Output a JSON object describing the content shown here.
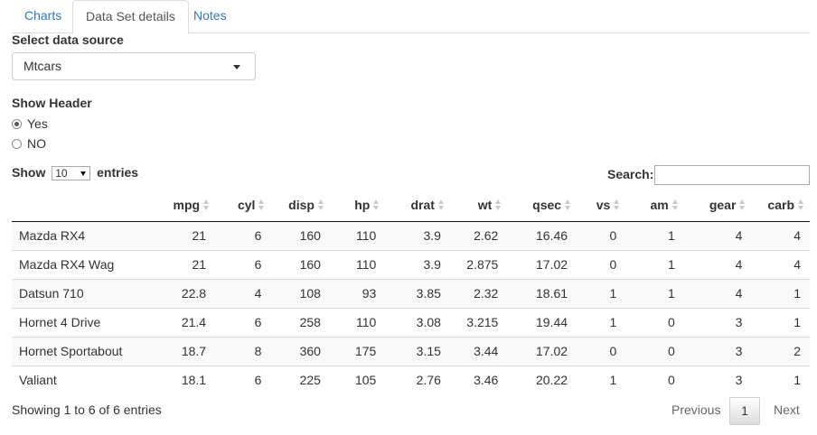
{
  "tabs": [
    {
      "label": "Charts",
      "active": false
    },
    {
      "label": "Data Set details",
      "active": true
    },
    {
      "label": "Notes",
      "active": false
    }
  ],
  "data_source": {
    "label": "Select data source",
    "selected": "Mtcars"
  },
  "show_header": {
    "label": "Show Header",
    "options": [
      {
        "label": "Yes",
        "checked": true
      },
      {
        "label": "NO",
        "checked": false
      }
    ]
  },
  "length": {
    "prefix": "Show",
    "selected": "10",
    "suffix": "entries"
  },
  "search": {
    "label": "Search:",
    "value": ""
  },
  "table": {
    "columns": [
      "",
      "mpg",
      "cyl",
      "disp",
      "hp",
      "drat",
      "wt",
      "qsec",
      "vs",
      "am",
      "gear",
      "carb"
    ],
    "rows": [
      [
        "Mazda RX4",
        "21",
        "6",
        "160",
        "110",
        "3.9",
        "2.62",
        "16.46",
        "0",
        "1",
        "4",
        "4"
      ],
      [
        "Mazda RX4 Wag",
        "21",
        "6",
        "160",
        "110",
        "3.9",
        "2.875",
        "17.02",
        "0",
        "1",
        "4",
        "4"
      ],
      [
        "Datsun 710",
        "22.8",
        "4",
        "108",
        "93",
        "3.85",
        "2.32",
        "18.61",
        "1",
        "1",
        "4",
        "1"
      ],
      [
        "Hornet 4 Drive",
        "21.4",
        "6",
        "258",
        "110",
        "3.08",
        "3.215",
        "19.44",
        "1",
        "0",
        "3",
        "1"
      ],
      [
        "Hornet Sportabout",
        "18.7",
        "8",
        "360",
        "175",
        "3.15",
        "3.44",
        "17.02",
        "0",
        "0",
        "3",
        "2"
      ],
      [
        "Valiant",
        "18.1",
        "6",
        "225",
        "105",
        "2.76",
        "3.46",
        "20.22",
        "1",
        "0",
        "3",
        "1"
      ]
    ]
  },
  "footer": {
    "info": "Showing 1 to 6 of 6 entries",
    "previous": "Previous",
    "current_page": "1",
    "next": "Next"
  }
}
